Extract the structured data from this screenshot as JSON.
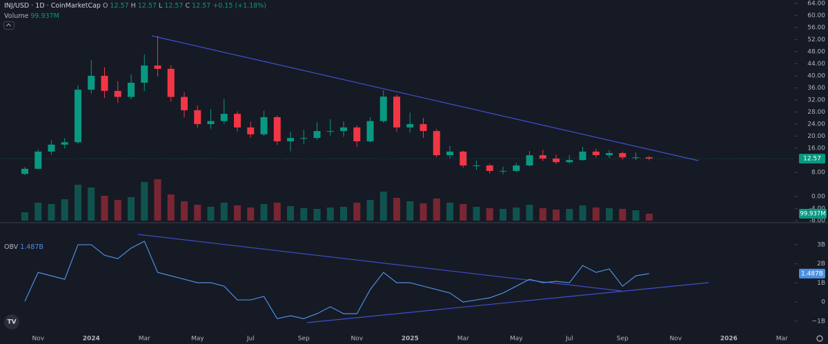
{
  "chart_data": [
    {
      "type": "candlestick",
      "title": "INJ/USD · 1D · CoinMarketCap",
      "ohlc_labels": [
        "O",
        "H",
        "L",
        "C"
      ],
      "ohlc_values": [
        12.57,
        12.57,
        12.57,
        12.57
      ],
      "change_label": "+0.15 (+1.18%)",
      "last_price": 12.57,
      "up_color": "#089981",
      "down_color": "#f23645",
      "categories": [
        null,
        "Nov",
        null,
        null,
        null,
        "2024",
        null,
        null,
        null,
        "Mar",
        null,
        null,
        null,
        "May",
        null,
        null,
        null,
        "Jul",
        null,
        null,
        null,
        "Sep",
        null,
        null,
        null,
        "Nov",
        null,
        null,
        null,
        "2025",
        null,
        null,
        null,
        "Mar",
        null,
        null,
        null,
        "May",
        null,
        null,
        null,
        "Jul",
        null,
        null,
        null,
        "Sep",
        null,
        null,
        null,
        "Nov",
        null,
        null,
        null,
        "2026",
        null,
        null,
        null,
        "Mar",
        null
      ],
      "open": [
        7.5,
        9.2,
        14.9,
        17.2,
        18.0,
        35.4,
        40.0,
        35.0,
        33.0,
        37.7,
        43.4,
        42.3,
        33.0,
        28.6,
        24.0,
        25.0,
        27.4,
        22.9,
        20.6,
        26.3,
        18.3,
        19.4,
        19.4,
        21.7,
        21.7,
        22.9,
        18.3,
        25.0,
        33.1,
        22.9,
        24.0,
        21.7,
        13.7,
        14.9,
        10.3,
        10.3,
        8.5,
        8.5,
        10.3,
        13.7,
        12.6,
        11.4,
        12.1,
        14.9,
        13.7,
        14.4,
        13.0,
        13.0,
        null,
        null,
        null,
        null,
        null,
        null,
        null,
        null,
        null,
        null,
        null
      ],
      "high": [
        9.8,
        15.6,
        18.6,
        19.4,
        36.8,
        45.2,
        42.8,
        38.2,
        40.5,
        47.1,
        53.2,
        43.5,
        34.6,
        30.1,
        28.9,
        32.3,
        28.2,
        24.8,
        28.4,
        26.9,
        21.5,
        22.1,
        24.6,
        25.6,
        24.9,
        23.5,
        26.3,
        35.2,
        33.8,
        27.8,
        26.1,
        22.4,
        16.8,
        15.2,
        11.9,
        10.9,
        9.9,
        11.2,
        15.1,
        15.5,
        13.9,
        13.8,
        16.5,
        15.8,
        15.4,
        14.9,
        14.6,
        13.4,
        null,
        null,
        null,
        null,
        null,
        null,
        null,
        null,
        null,
        null,
        null
      ],
      "low": [
        7.2,
        9.0,
        13.8,
        15.9,
        17.5,
        34.1,
        32.6,
        31.0,
        32.2,
        34.9,
        39.8,
        31.5,
        26.2,
        22.8,
        22.5,
        24.1,
        21.6,
        19.5,
        20.0,
        17.1,
        15.0,
        17.3,
        18.8,
        20.2,
        19.8,
        16.5,
        17.9,
        24.4,
        21.4,
        21.2,
        19.5,
        13.0,
        12.6,
        9.6,
        8.9,
        7.6,
        7.4,
        8.1,
        10.0,
        11.8,
        10.8,
        11.0,
        11.9,
        12.9,
        12.8,
        12.3,
        12.1,
        12.0,
        null,
        null,
        null,
        null,
        null,
        null,
        null,
        null,
        null,
        null,
        null
      ],
      "close": [
        9.2,
        14.9,
        17.2,
        18.0,
        35.4,
        40.0,
        35.0,
        33.0,
        37.7,
        43.4,
        42.3,
        33.0,
        28.6,
        24.0,
        25.0,
        27.4,
        22.9,
        20.6,
        26.3,
        18.3,
        19.4,
        19.4,
        21.7,
        21.7,
        22.9,
        18.3,
        25.0,
        33.1,
        22.9,
        24.0,
        21.7,
        13.7,
        14.9,
        10.3,
        10.3,
        8.5,
        8.5,
        10.3,
        13.7,
        12.6,
        11.4,
        12.1,
        14.9,
        13.7,
        14.4,
        13.0,
        13.0,
        12.57,
        null,
        null,
        null,
        null,
        null,
        null,
        null,
        null,
        null,
        null,
        null
      ],
      "volume": {
        "name": "Volume",
        "last_label": "99.937M",
        "values": [
          120,
          260,
          240,
          310,
          520,
          480,
          360,
          300,
          340,
          560,
          600,
          380,
          280,
          230,
          200,
          260,
          220,
          190,
          240,
          260,
          210,
          180,
          170,
          190,
          200,
          260,
          300,
          420,
          330,
          280,
          250,
          320,
          260,
          240,
          200,
          180,
          170,
          190,
          230,
          180,
          160,
          170,
          220,
          190,
          180,
          170,
          150,
          99.937,
          null,
          null,
          null,
          null,
          null,
          null,
          null,
          null,
          null,
          null,
          null
        ]
      },
      "ylim": [
        -9.1,
        65.1
      ],
      "yticks": [
        {
          "value": 64,
          "label": "64.00"
        },
        {
          "value": 60,
          "label": "60.00"
        },
        {
          "value": 56,
          "label": "56.00"
        },
        {
          "value": 52,
          "label": "52.00"
        },
        {
          "value": 48,
          "label": "48.00"
        },
        {
          "value": 44,
          "label": "44.00"
        },
        {
          "value": 40,
          "label": "40.00"
        },
        {
          "value": 36,
          "label": "36.00"
        },
        {
          "value": 32,
          "label": "32.00"
        },
        {
          "value": 28,
          "label": "28.00"
        },
        {
          "value": 24,
          "label": "24.00"
        },
        {
          "value": 20,
          "label": "20.00"
        },
        {
          "value": 16,
          "label": "16.00"
        },
        {
          "value": 8,
          "label": "8.00"
        },
        {
          "value": 0,
          "label": "0.00"
        },
        {
          "value": -4,
          "label": "-4.00"
        },
        {
          "value": -8,
          "label": "-8.00"
        }
      ],
      "grid": false
    },
    {
      "type": "line",
      "name": "OBV",
      "color": "#4a90e2",
      "last_label": "1.487B",
      "values": [
        0.04,
        1.55,
        1.37,
        1.19,
        3.0,
        3.0,
        2.45,
        2.27,
        2.82,
        3.18,
        1.55,
        1.37,
        1.19,
        1.01,
        1.01,
        0.83,
        0.11,
        0.11,
        0.29,
        -0.87,
        -0.72,
        -0.87,
        -0.61,
        -0.25,
        -0.61,
        -0.61,
        0.65,
        1.55,
        1.01,
        1.01,
        0.83,
        0.65,
        0.47,
        0,
        0.11,
        0.22,
        0.47,
        0.83,
        1.19,
        1.01,
        1.08,
        1.01,
        1.91,
        1.55,
        1.73,
        0.83,
        1.37,
        1.487,
        null,
        null,
        null,
        null,
        null,
        null,
        null,
        null,
        null,
        null,
        null
      ],
      "ylim": [
        -1.44,
        4.08
      ],
      "yticks": [
        {
          "value": 3,
          "label": "3B"
        },
        {
          "value": 2,
          "label": "2B"
        },
        {
          "value": 1,
          "label": "1B"
        },
        0,
        {
          "value": -1,
          "label": "−1B"
        }
      ],
      "grid": false
    }
  ]
}
